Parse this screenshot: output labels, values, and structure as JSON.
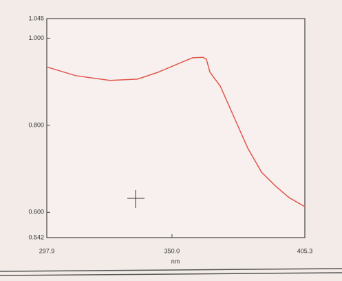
{
  "chart_data": {
    "type": "line",
    "x_label": "nm",
    "x": [
      297.9,
      309.9,
      324.2,
      335.7,
      344.3,
      352.9,
      358.6,
      362.9,
      364.3,
      365.8,
      370.1,
      375.8,
      381.5,
      387.3,
      393.0,
      398.7,
      405.3
    ],
    "series": [
      {
        "color": "#e0564c",
        "values": [
          0.934,
          0.914,
          0.903,
          0.906,
          0.922,
          0.942,
          0.955,
          0.956,
          0.952,
          0.922,
          0.89,
          0.819,
          0.748,
          0.692,
          0.661,
          0.634,
          0.613
        ]
      }
    ],
    "xlim": [
      297.9,
      405.3
    ],
    "xticks": [
      297.9,
      {
        "value": 350,
        "label": "350.0"
      },
      405.3
    ],
    "ylim": [
      0.542,
      1.045
    ],
    "yticks": [
      {
        "value": 1.045,
        "label": "1.045"
      },
      {
        "value": 1,
        "label": "1.000"
      },
      {
        "value": 0.8,
        "label": "0.800"
      },
      {
        "value": 0.6,
        "label": "0.600"
      },
      0.542
    ]
  }
}
